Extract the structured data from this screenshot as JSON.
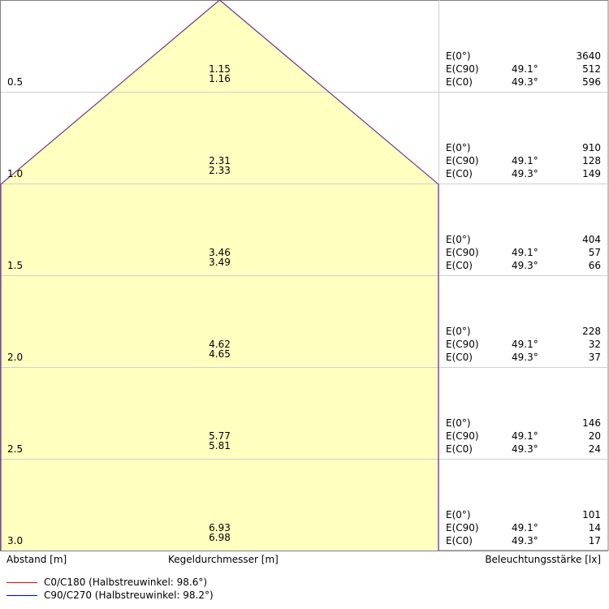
{
  "chart_data": {
    "type": "cone-diagram",
    "xlabel": "Kegeldurchmesser [m]",
    "ylabel": "Abstand [m]",
    "right_label": "Beleuchtungsstärke [lx]",
    "rows": [
      {
        "distance": "0.5",
        "d_c0": "1.15",
        "d_c90": "1.16",
        "e0": "3640",
        "ec90_angle": "49.1°",
        "ec90": "512",
        "ec0_angle": "49.3°",
        "ec0": "596"
      },
      {
        "distance": "1.0",
        "d_c0": "2.31",
        "d_c90": "2.33",
        "e0": "910",
        "ec90_angle": "49.1°",
        "ec90": "128",
        "ec0_angle": "49.3°",
        "ec0": "149"
      },
      {
        "distance": "1.5",
        "d_c0": "3.46",
        "d_c90": "3.49",
        "e0": "404",
        "ec90_angle": "49.1°",
        "ec90": "57",
        "ec0_angle": "49.3°",
        "ec0": "66"
      },
      {
        "distance": "2.0",
        "d_c0": "4.62",
        "d_c90": "4.65",
        "e0": "228",
        "ec90_angle": "49.1°",
        "ec90": "32",
        "ec0_angle": "49.3°",
        "ec0": "37"
      },
      {
        "distance": "2.5",
        "d_c0": "5.77",
        "d_c90": "5.81",
        "e0": "146",
        "ec90_angle": "49.1°",
        "ec90": "20",
        "ec0_angle": "49.3°",
        "ec0": "24"
      },
      {
        "distance": "3.0",
        "d_c0": "6.93",
        "d_c90": "6.98",
        "e0": "101",
        "ec90_angle": "49.1°",
        "ec90": "14",
        "ec0_angle": "49.3°",
        "ec0": "17"
      }
    ],
    "e_labels": {
      "e0": "E(0°)",
      "ec90": "E(C90)",
      "ec0": "E(C0)"
    },
    "max_diameter_visible": 2.33,
    "legend": [
      {
        "name": "C0/C180 (Halbstreuwinkel: 98.6°)",
        "color": "#ff0000"
      },
      {
        "name": "C90/C270 (Halbstreuwinkel: 98.2°)",
        "color": "#0000ff"
      }
    ],
    "colors": {
      "cone_fill": "#ffffc0",
      "cone_stroke": "#7030a0",
      "grid": "#d0d0d0",
      "frame": "#808080"
    }
  }
}
